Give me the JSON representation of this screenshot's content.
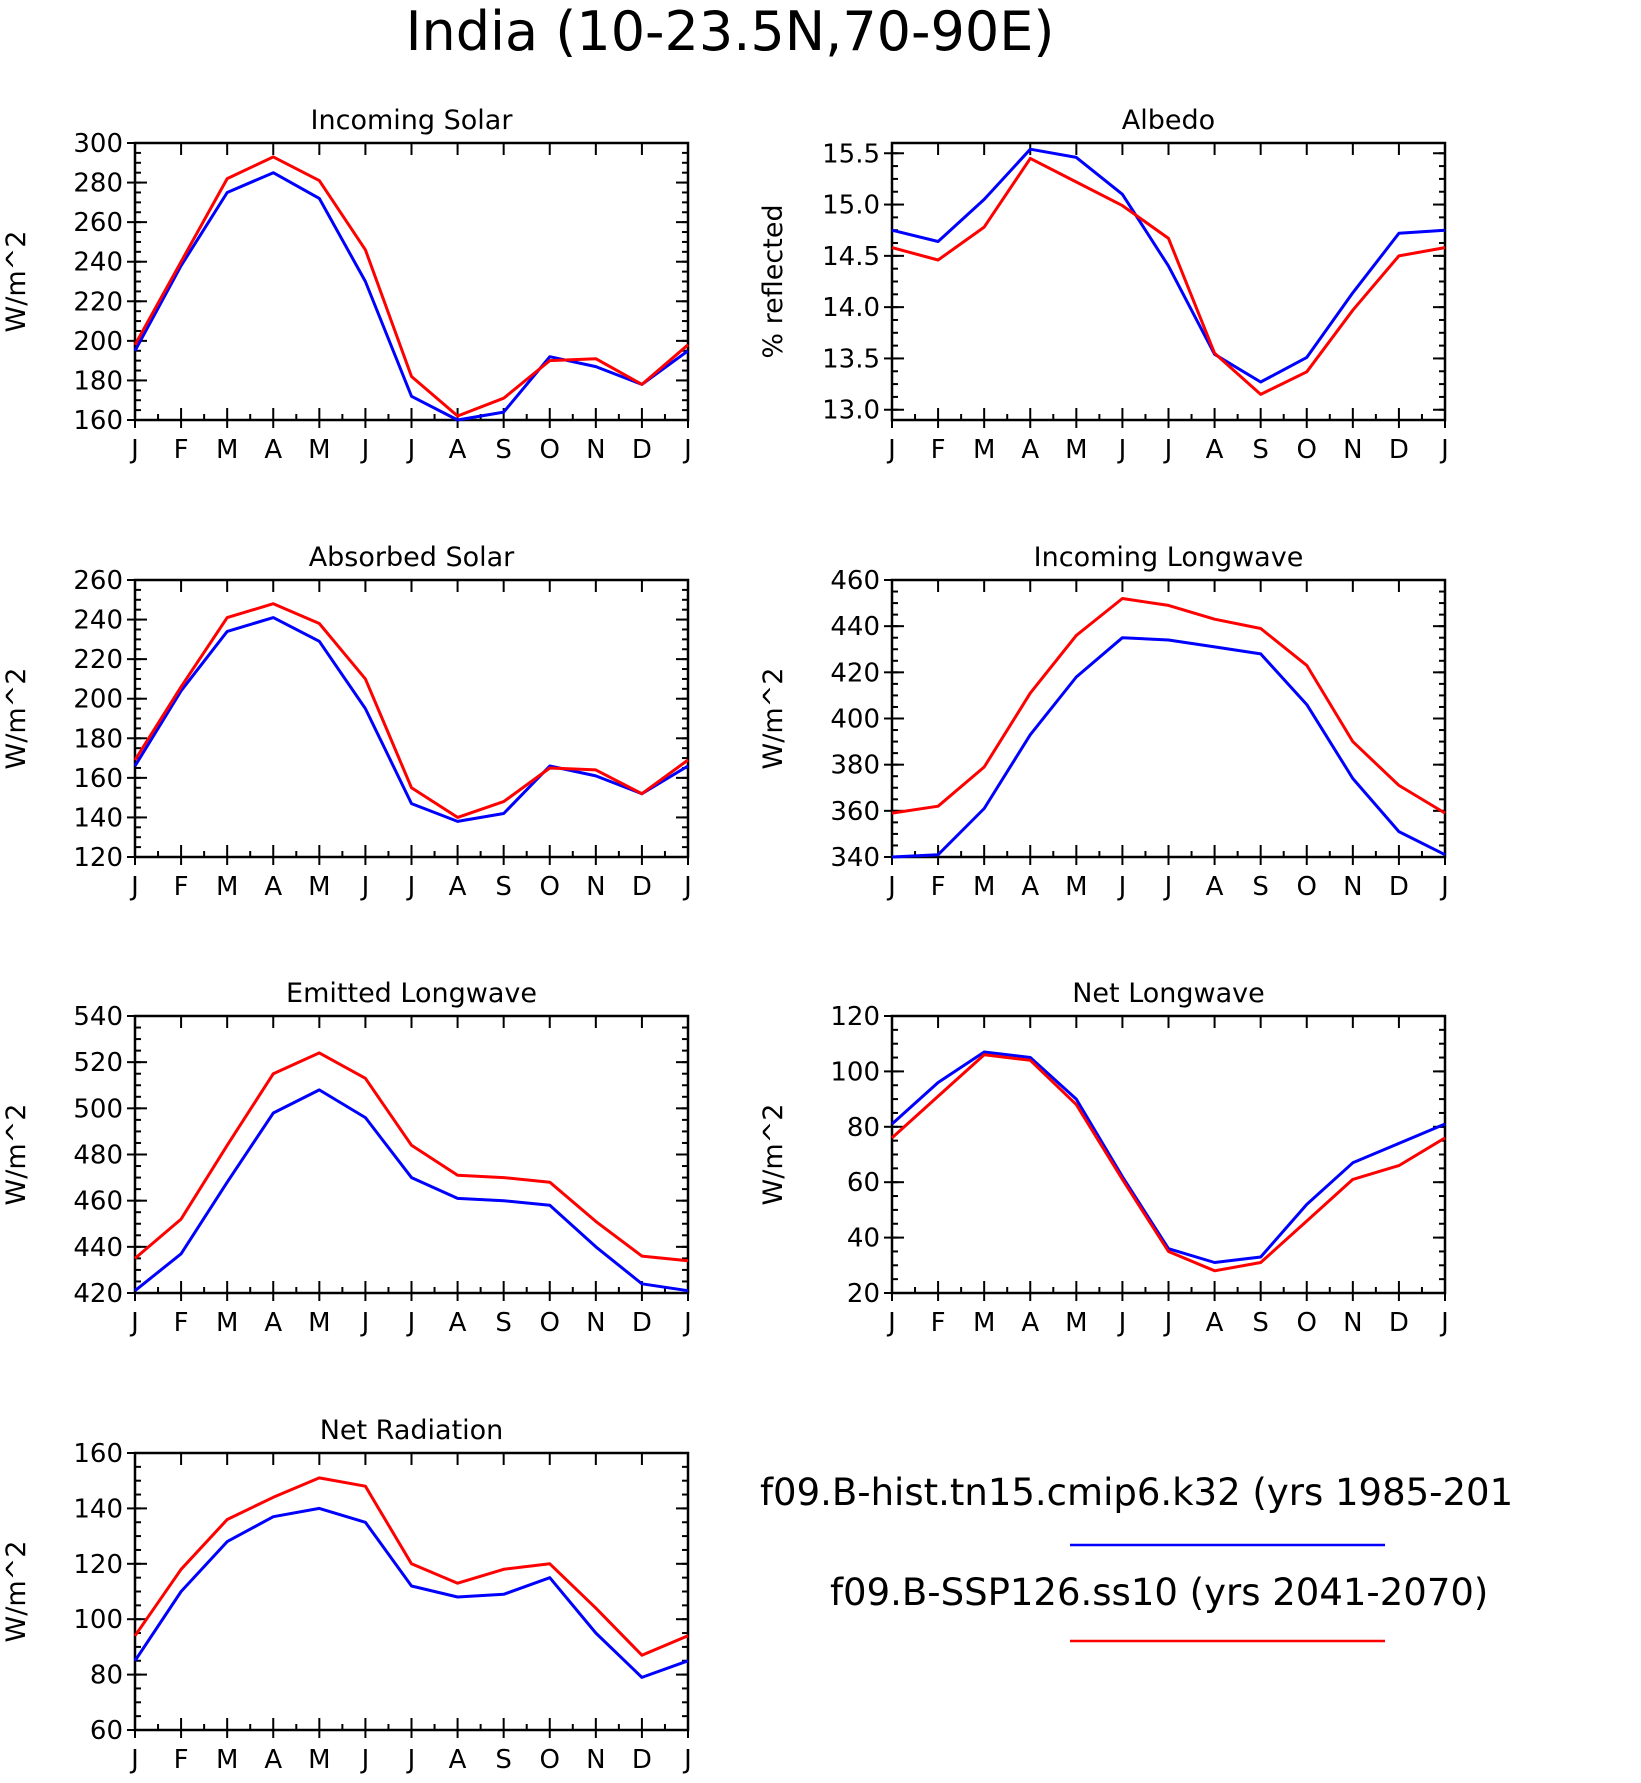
{
  "title": "India (10-23.5N,70-90E)",
  "legend": {
    "entries": [
      {
        "label": "f09.B-hist.tn15.cmip6.k32 (yrs 1985-201",
        "color": "#0000ff"
      },
      {
        "label": "f09.B-SSP126.ss10 (yrs 2041-2070)",
        "color": "#ff0000"
      }
    ]
  },
  "colors": {
    "historical": "#0000ff",
    "ssp126": "#ff0000"
  },
  "chart_data": [
    {
      "type": "line",
      "title": "Incoming Solar",
      "ylabel": "W/m^2",
      "xlabel": "",
      "categories": [
        "J",
        "F",
        "M",
        "A",
        "M",
        "J",
        "J",
        "A",
        "S",
        "O",
        "N",
        "D",
        "J"
      ],
      "ylim": [
        160,
        300
      ],
      "yticks": [
        "160",
        "180",
        "200",
        "220",
        "240",
        "260",
        "280",
        "300"
      ],
      "ytick_values": [
        160,
        180,
        200,
        220,
        240,
        260,
        280,
        300
      ],
      "series": [
        {
          "color": "#0000ff",
          "values": [
            195,
            238,
            275,
            285,
            272,
            230,
            172,
            160,
            164,
            192,
            187,
            178,
            195
          ]
        },
        {
          "color": "#ff0000",
          "values": [
            198,
            240,
            282,
            293,
            281,
            246,
            182,
            162,
            171,
            190,
            191,
            178,
            198
          ]
        }
      ]
    },
    {
      "type": "line",
      "title": "Albedo",
      "ylabel": "% reflected",
      "xlabel": "",
      "categories": [
        "J",
        "F",
        "M",
        "A",
        "M",
        "J",
        "J",
        "A",
        "S",
        "O",
        "N",
        "D",
        "J"
      ],
      "ylim": [
        12.9,
        15.6
      ],
      "yticks": [
        "13.0",
        "13.5",
        "14.0",
        "14.5",
        "15.0",
        "15.5"
      ],
      "ytick_values": [
        13.0,
        13.5,
        14.0,
        14.5,
        15.0,
        15.5
      ],
      "series": [
        {
          "color": "#0000ff",
          "values": [
            14.75,
            14.64,
            15.05,
            15.54,
            15.46,
            15.1,
            14.4,
            13.54,
            13.27,
            13.51,
            14.14,
            14.72,
            14.75
          ]
        },
        {
          "color": "#ff0000",
          "values": [
            14.58,
            14.46,
            14.78,
            15.45,
            15.22,
            14.99,
            14.67,
            13.55,
            13.15,
            13.37,
            13.97,
            14.5,
            14.58
          ]
        }
      ]
    },
    {
      "type": "line",
      "title": "Absorbed Solar",
      "ylabel": "W/m^2",
      "xlabel": "",
      "categories": [
        "J",
        "F",
        "M",
        "A",
        "M",
        "J",
        "J",
        "A",
        "S",
        "O",
        "N",
        "D",
        "J"
      ],
      "ylim": [
        120,
        260
      ],
      "yticks": [
        "120",
        "140",
        "160",
        "180",
        "200",
        "220",
        "240",
        "260"
      ],
      "ytick_values": [
        120,
        140,
        160,
        180,
        200,
        220,
        240,
        260
      ],
      "series": [
        {
          "color": "#0000ff",
          "values": [
            166,
            204,
            234,
            241,
            229,
            195,
            147,
            138,
            142,
            166,
            161,
            152,
            166
          ]
        },
        {
          "color": "#ff0000",
          "values": [
            169,
            206,
            241,
            248,
            238,
            210,
            155,
            140,
            148,
            165,
            164,
            152,
            169
          ]
        }
      ]
    },
    {
      "type": "line",
      "title": "Incoming Longwave",
      "ylabel": "W/m^2",
      "xlabel": "",
      "categories": [
        "J",
        "F",
        "M",
        "A",
        "M",
        "J",
        "J",
        "A",
        "S",
        "O",
        "N",
        "D",
        "J"
      ],
      "ylim": [
        340,
        460
      ],
      "yticks": [
        "340",
        "360",
        "380",
        "400",
        "420",
        "440",
        "460"
      ],
      "ytick_values": [
        340,
        360,
        380,
        400,
        420,
        440,
        460
      ],
      "series": [
        {
          "color": "#0000ff",
          "values": [
            340,
            341,
            361,
            393,
            418,
            435,
            434,
            431,
            428,
            406,
            374,
            351,
            341
          ]
        },
        {
          "color": "#ff0000",
          "values": [
            359,
            362,
            379,
            411,
            436,
            452,
            449,
            443,
            439,
            423,
            390,
            371,
            359
          ]
        }
      ]
    },
    {
      "type": "line",
      "title": "Emitted Longwave",
      "ylabel": "W/m^2",
      "xlabel": "",
      "categories": [
        "J",
        "F",
        "M",
        "A",
        "M",
        "J",
        "J",
        "A",
        "S",
        "O",
        "N",
        "D",
        "J"
      ],
      "ylim": [
        420,
        540
      ],
      "yticks": [
        "420",
        "440",
        "460",
        "480",
        "500",
        "520",
        "540"
      ],
      "ytick_values": [
        420,
        440,
        460,
        480,
        500,
        520,
        540
      ],
      "series": [
        {
          "color": "#0000ff",
          "values": [
            421,
            437,
            468,
            498,
            508,
            496,
            470,
            461,
            460,
            458,
            440,
            424,
            421
          ]
        },
        {
          "color": "#ff0000",
          "values": [
            435,
            452,
            484,
            515,
            524,
            513,
            484,
            471,
            470,
            468,
            451,
            436,
            434
          ]
        }
      ]
    },
    {
      "type": "line",
      "title": "Net Longwave",
      "ylabel": "W/m^2",
      "xlabel": "",
      "categories": [
        "J",
        "F",
        "M",
        "A",
        "M",
        "J",
        "J",
        "A",
        "S",
        "O",
        "N",
        "D",
        "J"
      ],
      "ylim": [
        20,
        120
      ],
      "yticks": [
        "20",
        "40",
        "60",
        "80",
        "100",
        "120"
      ],
      "ytick_values": [
        20,
        40,
        60,
        80,
        100,
        120
      ],
      "series": [
        {
          "color": "#0000ff",
          "values": [
            81,
            96,
            107,
            105,
            90,
            62,
            36,
            31,
            33,
            52,
            67,
            74,
            81
          ]
        },
        {
          "color": "#ff0000",
          "values": [
            76,
            91,
            106,
            104,
            88,
            61,
            35,
            28,
            31,
            46,
            61,
            66,
            76
          ]
        }
      ]
    },
    {
      "type": "line",
      "title": "Net Radiation",
      "ylabel": "W/m^2",
      "xlabel": "",
      "categories": [
        "J",
        "F",
        "M",
        "A",
        "M",
        "J",
        "J",
        "A",
        "S",
        "O",
        "N",
        "D",
        "J"
      ],
      "ylim": [
        60,
        160
      ],
      "yticks": [
        "60",
        "80",
        "100",
        "120",
        "140",
        "160"
      ],
      "ytick_values": [
        60,
        80,
        100,
        120,
        140,
        160
      ],
      "series": [
        {
          "color": "#0000ff",
          "values": [
            85,
            110,
            128,
            137,
            140,
            135,
            112,
            108,
            109,
            115,
            95,
            79,
            85
          ]
        },
        {
          "color": "#ff0000",
          "values": [
            94,
            118,
            136,
            144,
            151,
            148,
            120,
            113,
            118,
            120,
            104,
            87,
            94
          ]
        }
      ]
    }
  ]
}
